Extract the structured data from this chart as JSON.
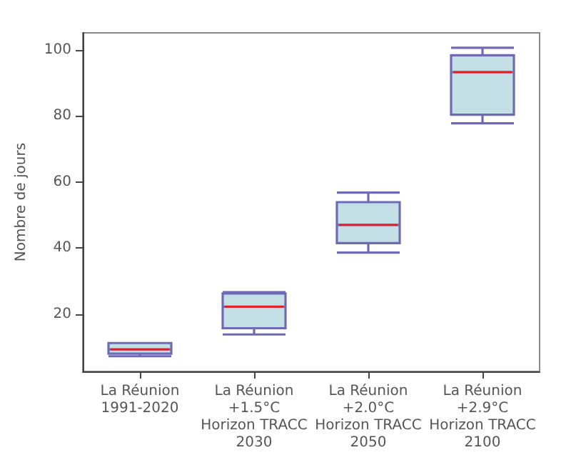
{
  "chart_data": {
    "type": "box",
    "ylabel": "Nombre de jours",
    "categories": [
      "La Réunion\n1991-2020",
      "La Réunion\n+1.5°C\nHorizon TRACC\n2030",
      "La Réunion\n+2.0°C\nHorizon TRACC\n2050",
      "La Réunion\n+2.9°C\nHorizon TRACC\n2100"
    ],
    "series": [
      {
        "color": "#6f6ab5",
        "boxes": [
          {
            "low": 7.2,
            "q1": 8,
            "median": 9.3,
            "q3": 11.2,
            "high": 11.2
          },
          {
            "low": 13.8,
            "q1": 15.7,
            "median": 22.2,
            "q3": 26.2,
            "high": 26.6
          },
          {
            "low": 38.6,
            "q1": 41.5,
            "median": 47,
            "q3": 53.9,
            "high": 56.8
          },
          {
            "low": 77.8,
            "q1": 80.4,
            "median": 93.3,
            "q3": 98.4,
            "high": 100.7
          }
        ]
      }
    ],
    "ylim": [
      2.6,
      105.2
    ],
    "yticks": [
      20,
      40,
      60,
      80,
      100
    ],
    "grid": false
  }
}
